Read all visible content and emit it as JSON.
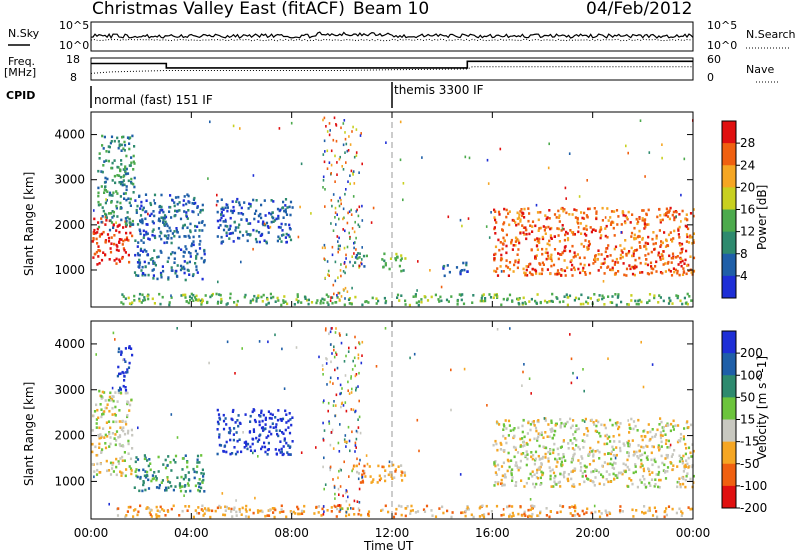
{
  "header": {
    "title": "Christmas Valley East (fitACF)",
    "beam": "Beam 10",
    "date": "04/Feb/2012"
  },
  "strips": {
    "nsky_label": "N.Sky",
    "nsearch_label": "N.Search",
    "freq_label_1": "Freq.",
    "freq_label_2": "[MHz]",
    "nave_label": "Nave",
    "cpid_label": "CPID",
    "noise_ticks_left": [
      "10^5",
      "10^0"
    ],
    "noise_ticks_right": [
      "10^5",
      "10^0"
    ],
    "freq_ticks": [
      "18",
      "8"
    ],
    "nave_ticks": [
      "60",
      "0"
    ],
    "cpid_segments": [
      {
        "start_hour": 0,
        "label": "normal (fast) 151 IF"
      },
      {
        "start_hour": 12.0,
        "label": "themis 3300 IF"
      }
    ],
    "freq_series_mhz": [
      [
        0,
        15.5
      ],
      [
        3.0,
        15.5
      ],
      [
        3.0,
        13.5
      ],
      [
        15.0,
        13.5
      ],
      [
        15.0,
        16.5
      ],
      [
        24,
        16.5
      ]
    ],
    "nave_series": [
      [
        0,
        18
      ],
      [
        0.8,
        22
      ],
      [
        3.0,
        26
      ],
      [
        10,
        26
      ],
      [
        12,
        28
      ],
      [
        15,
        30
      ],
      [
        15.2,
        36
      ],
      [
        24,
        36
      ]
    ]
  },
  "chart_data": [
    {
      "type": "heatmap",
      "name": "Power",
      "ylabel": "Slant Range [km]",
      "xlabel": "Time UT",
      "y_ticks": [
        "1000",
        "2000",
        "3000",
        "4000"
      ],
      "ylim": [
        180,
        4500
      ],
      "x_ticks": [
        "00:00",
        "04:00",
        "08:00",
        "12:00",
        "16:00",
        "20:00",
        "00:00"
      ],
      "xlim_hours": [
        0,
        24
      ],
      "colorbar_label": "Power [dB]",
      "colorbar_ticks": [
        "4",
        "8",
        "12",
        "16",
        "20",
        "24",
        "28"
      ],
      "colorbar_colors": [
        "#1e2fd6",
        "#1f5fa8",
        "#2e8a6e",
        "#4caa4c",
        "#c8d020",
        "#f5a623",
        "#f06010",
        "#e01010"
      ],
      "regions": [
        {
          "t0": 0.0,
          "t1": 1.6,
          "r0": 1150,
          "r1": 2200,
          "level": 7
        },
        {
          "t0": 0.2,
          "t1": 1.7,
          "r0": 1900,
          "r1": 4000,
          "level": 2
        },
        {
          "t0": 1.7,
          "t1": 4.5,
          "r0": 800,
          "r1": 2700,
          "level": 1
        },
        {
          "t0": 5.0,
          "t1": 8.0,
          "r0": 1600,
          "r1": 2600,
          "level": 1
        },
        {
          "t0": 10.4,
          "t1": 11.0,
          "r0": 1100,
          "r1": 1400,
          "level": 2
        },
        {
          "t0": 11.5,
          "t1": 12.5,
          "r0": 1000,
          "r1": 1400,
          "level": 3
        },
        {
          "t0": 14.0,
          "t1": 15.0,
          "r0": 900,
          "r1": 1200,
          "level": 1
        },
        {
          "t0": 16.0,
          "t1": 24.0,
          "r0": 900,
          "r1": 2400,
          "level": 6
        },
        {
          "t0": 1.0,
          "t1": 24.0,
          "r0": 250,
          "r1": 500,
          "level": 3
        }
      ]
    },
    {
      "type": "heatmap",
      "name": "Velocity",
      "ylabel": "Slant Range [km]",
      "xlabel": "Time UT",
      "y_ticks": [
        "1000",
        "2000",
        "3000",
        "4000"
      ],
      "ylim": [
        180,
        4500
      ],
      "x_ticks": [
        "00:00",
        "04:00",
        "08:00",
        "12:00",
        "16:00",
        "20:00",
        "00:00"
      ],
      "xlim_hours": [
        0,
        24
      ],
      "colorbar_label": "Velocity [m s^-1]",
      "colorbar_ticks": [
        "200",
        "100",
        "50",
        "15",
        "-15",
        "-50",
        "-100",
        "-200"
      ],
      "colorbar_colors": [
        "#1e2fd6",
        "#1f5fa8",
        "#2e8a6e",
        "#6cc43c",
        "#c8c8c0",
        "#f5a623",
        "#f06010",
        "#e01010"
      ],
      "regions": [
        {
          "t0": 0.0,
          "t1": 1.6,
          "r0": 1150,
          "r1": 3000,
          "level": 4
        },
        {
          "t0": 1.0,
          "t1": 1.6,
          "r0": 3000,
          "r1": 4000,
          "level": 0
        },
        {
          "t0": 1.7,
          "t1": 4.5,
          "r0": 800,
          "r1": 1600,
          "level": 2
        },
        {
          "t0": 5.0,
          "t1": 8.0,
          "r0": 1600,
          "r1": 2600,
          "level": 0
        },
        {
          "t0": 10.4,
          "t1": 12.5,
          "r0": 1000,
          "r1": 1400,
          "level": 5
        },
        {
          "t0": 16.0,
          "t1": 24.0,
          "r0": 900,
          "r1": 2400,
          "level": 4
        },
        {
          "t0": 1.0,
          "t1": 24.0,
          "r0": 250,
          "r1": 500,
          "level": 5
        }
      ]
    }
  ]
}
